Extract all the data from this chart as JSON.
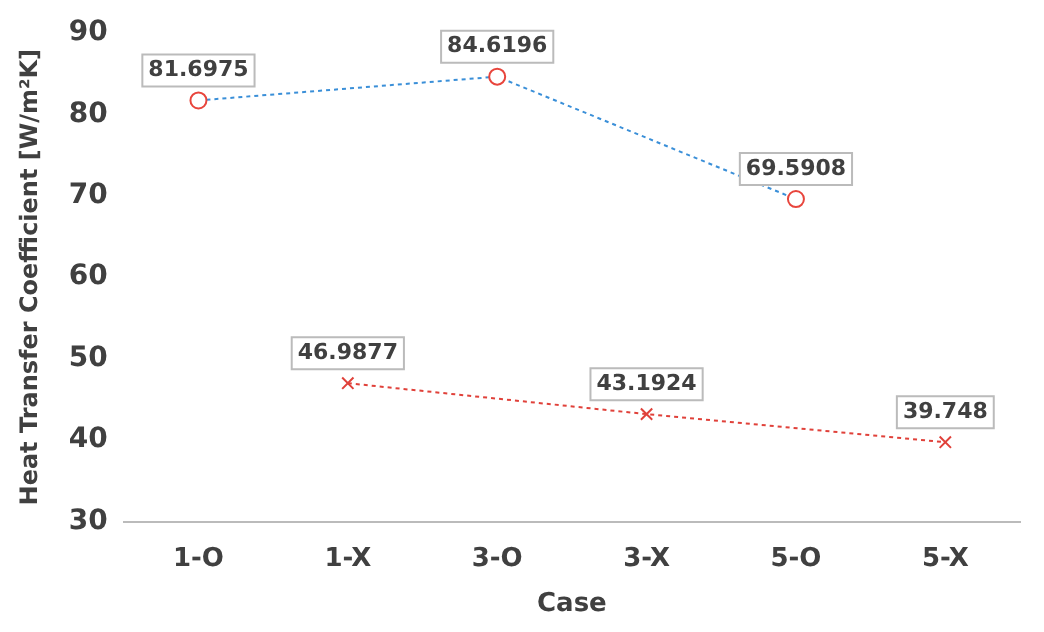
{
  "chart_data": {
    "type": "line",
    "xlabel": "Case",
    "ylabel": "Heat Transfer Coefficient [W/m²K]",
    "categories": [
      "1-O",
      "1-X",
      "3-O",
      "3-X",
      "5-O",
      "5-X"
    ],
    "series": [
      {
        "color": "#3a8fd8",
        "colors": [
          "#e8453c",
          "#e8453c",
          "#e8453c",
          "#e8453c",
          "#e8453c",
          "#e8453c"
        ],
        "marker": "circle",
        "line_style": "dotted",
        "values": [
          81.6975,
          null,
          84.6196,
          null,
          69.5908,
          null
        ]
      },
      {
        "color": "#e0413a",
        "marker": "cross",
        "line_style": "dotted",
        "values": [
          null,
          46.9877,
          null,
          43.1924,
          null,
          39.748
        ]
      }
    ],
    "ylim": [
      30,
      90
    ],
    "yticks": [
      30,
      40,
      50,
      60,
      70,
      80,
      90
    ],
    "grid": false,
    "legend": false,
    "data_labels": true
  }
}
